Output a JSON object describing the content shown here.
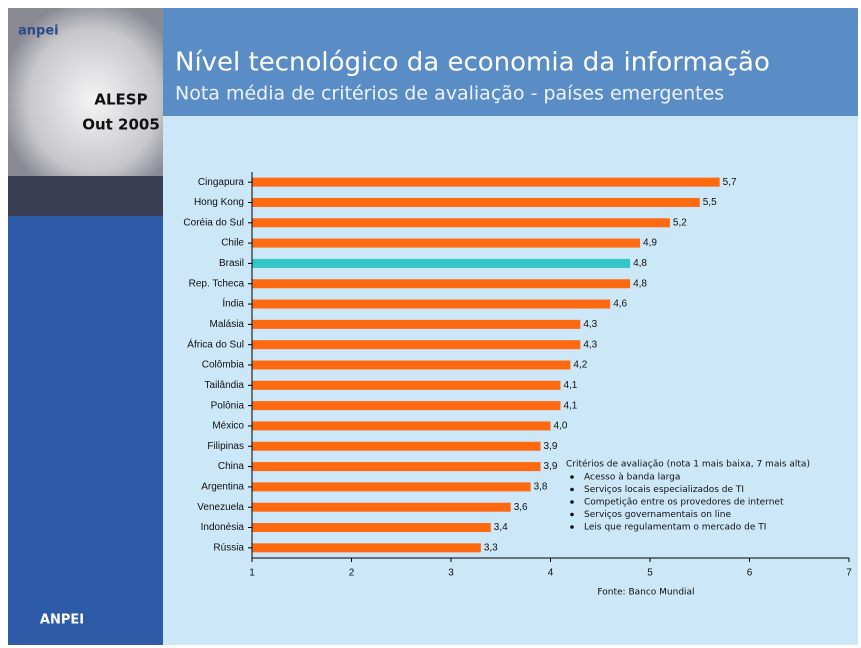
{
  "brand": {
    "logo": "anpei",
    "event": "ALESP",
    "date": "Out 2005",
    "footer": "ANPEI"
  },
  "chart_data": {
    "type": "hbar",
    "title": "Nível tecnológico da economia da informação",
    "subtitle": "Nota média de critérios de avaliação - países emergentes",
    "categories": [
      "Cingapura",
      "Hong Kong",
      "Coréia do Sul",
      "Chile",
      "Brasil",
      "Rep. Tcheca",
      "Índia",
      "Malásia",
      "África do Sul",
      "Colômbia",
      "Tailândia",
      "Polônia",
      "México",
      "Filipinas",
      "China",
      "Argentina",
      "Venezuela",
      "Indonésia",
      "Rússia"
    ],
    "values": [
      5.7,
      5.5,
      5.2,
      4.9,
      4.8,
      4.8,
      4.6,
      4.3,
      4.3,
      4.2,
      4.1,
      4.1,
      4.0,
      3.9,
      3.9,
      3.8,
      3.6,
      3.4,
      3.3
    ],
    "value_labels": [
      "5,7",
      "5,5",
      "5,2",
      "4,9",
      "4,8",
      "4,8",
      "4,6",
      "4,3",
      "4,3",
      "4,2",
      "4,1",
      "4,1",
      "4,0",
      "3,9",
      "3,9",
      "3,8",
      "3,6",
      "3,4",
      "3,3"
    ],
    "colors": [
      "#ff6a10",
      "#ff6a10",
      "#ff6a10",
      "#ff6a10",
      "#33c6c6",
      "#ff6a10",
      "#ff6a10",
      "#ff6a10",
      "#ff6a10",
      "#ff6a10",
      "#ff6a10",
      "#ff6a10",
      "#ff6a10",
      "#ff6a10",
      "#ff6a10",
      "#ff6a10",
      "#ff6a10",
      "#ff6a10",
      "#ff6a10"
    ],
    "xlim": [
      1,
      7
    ],
    "xticks": [
      1,
      2,
      3,
      4,
      5,
      6,
      7
    ],
    "notes": {
      "title": "Critérios de avaliação (nota 1 mais baixa, 7 mais alta)",
      "items": [
        "Acesso à banda larga",
        "Serviços locais especializados de TI",
        "Competição entre os provedores de internet",
        "Serviços governamentais on line",
        "Leis que regulamentam o mercado de TI"
      ]
    },
    "source": "Fonte: Banco Mundial"
  }
}
